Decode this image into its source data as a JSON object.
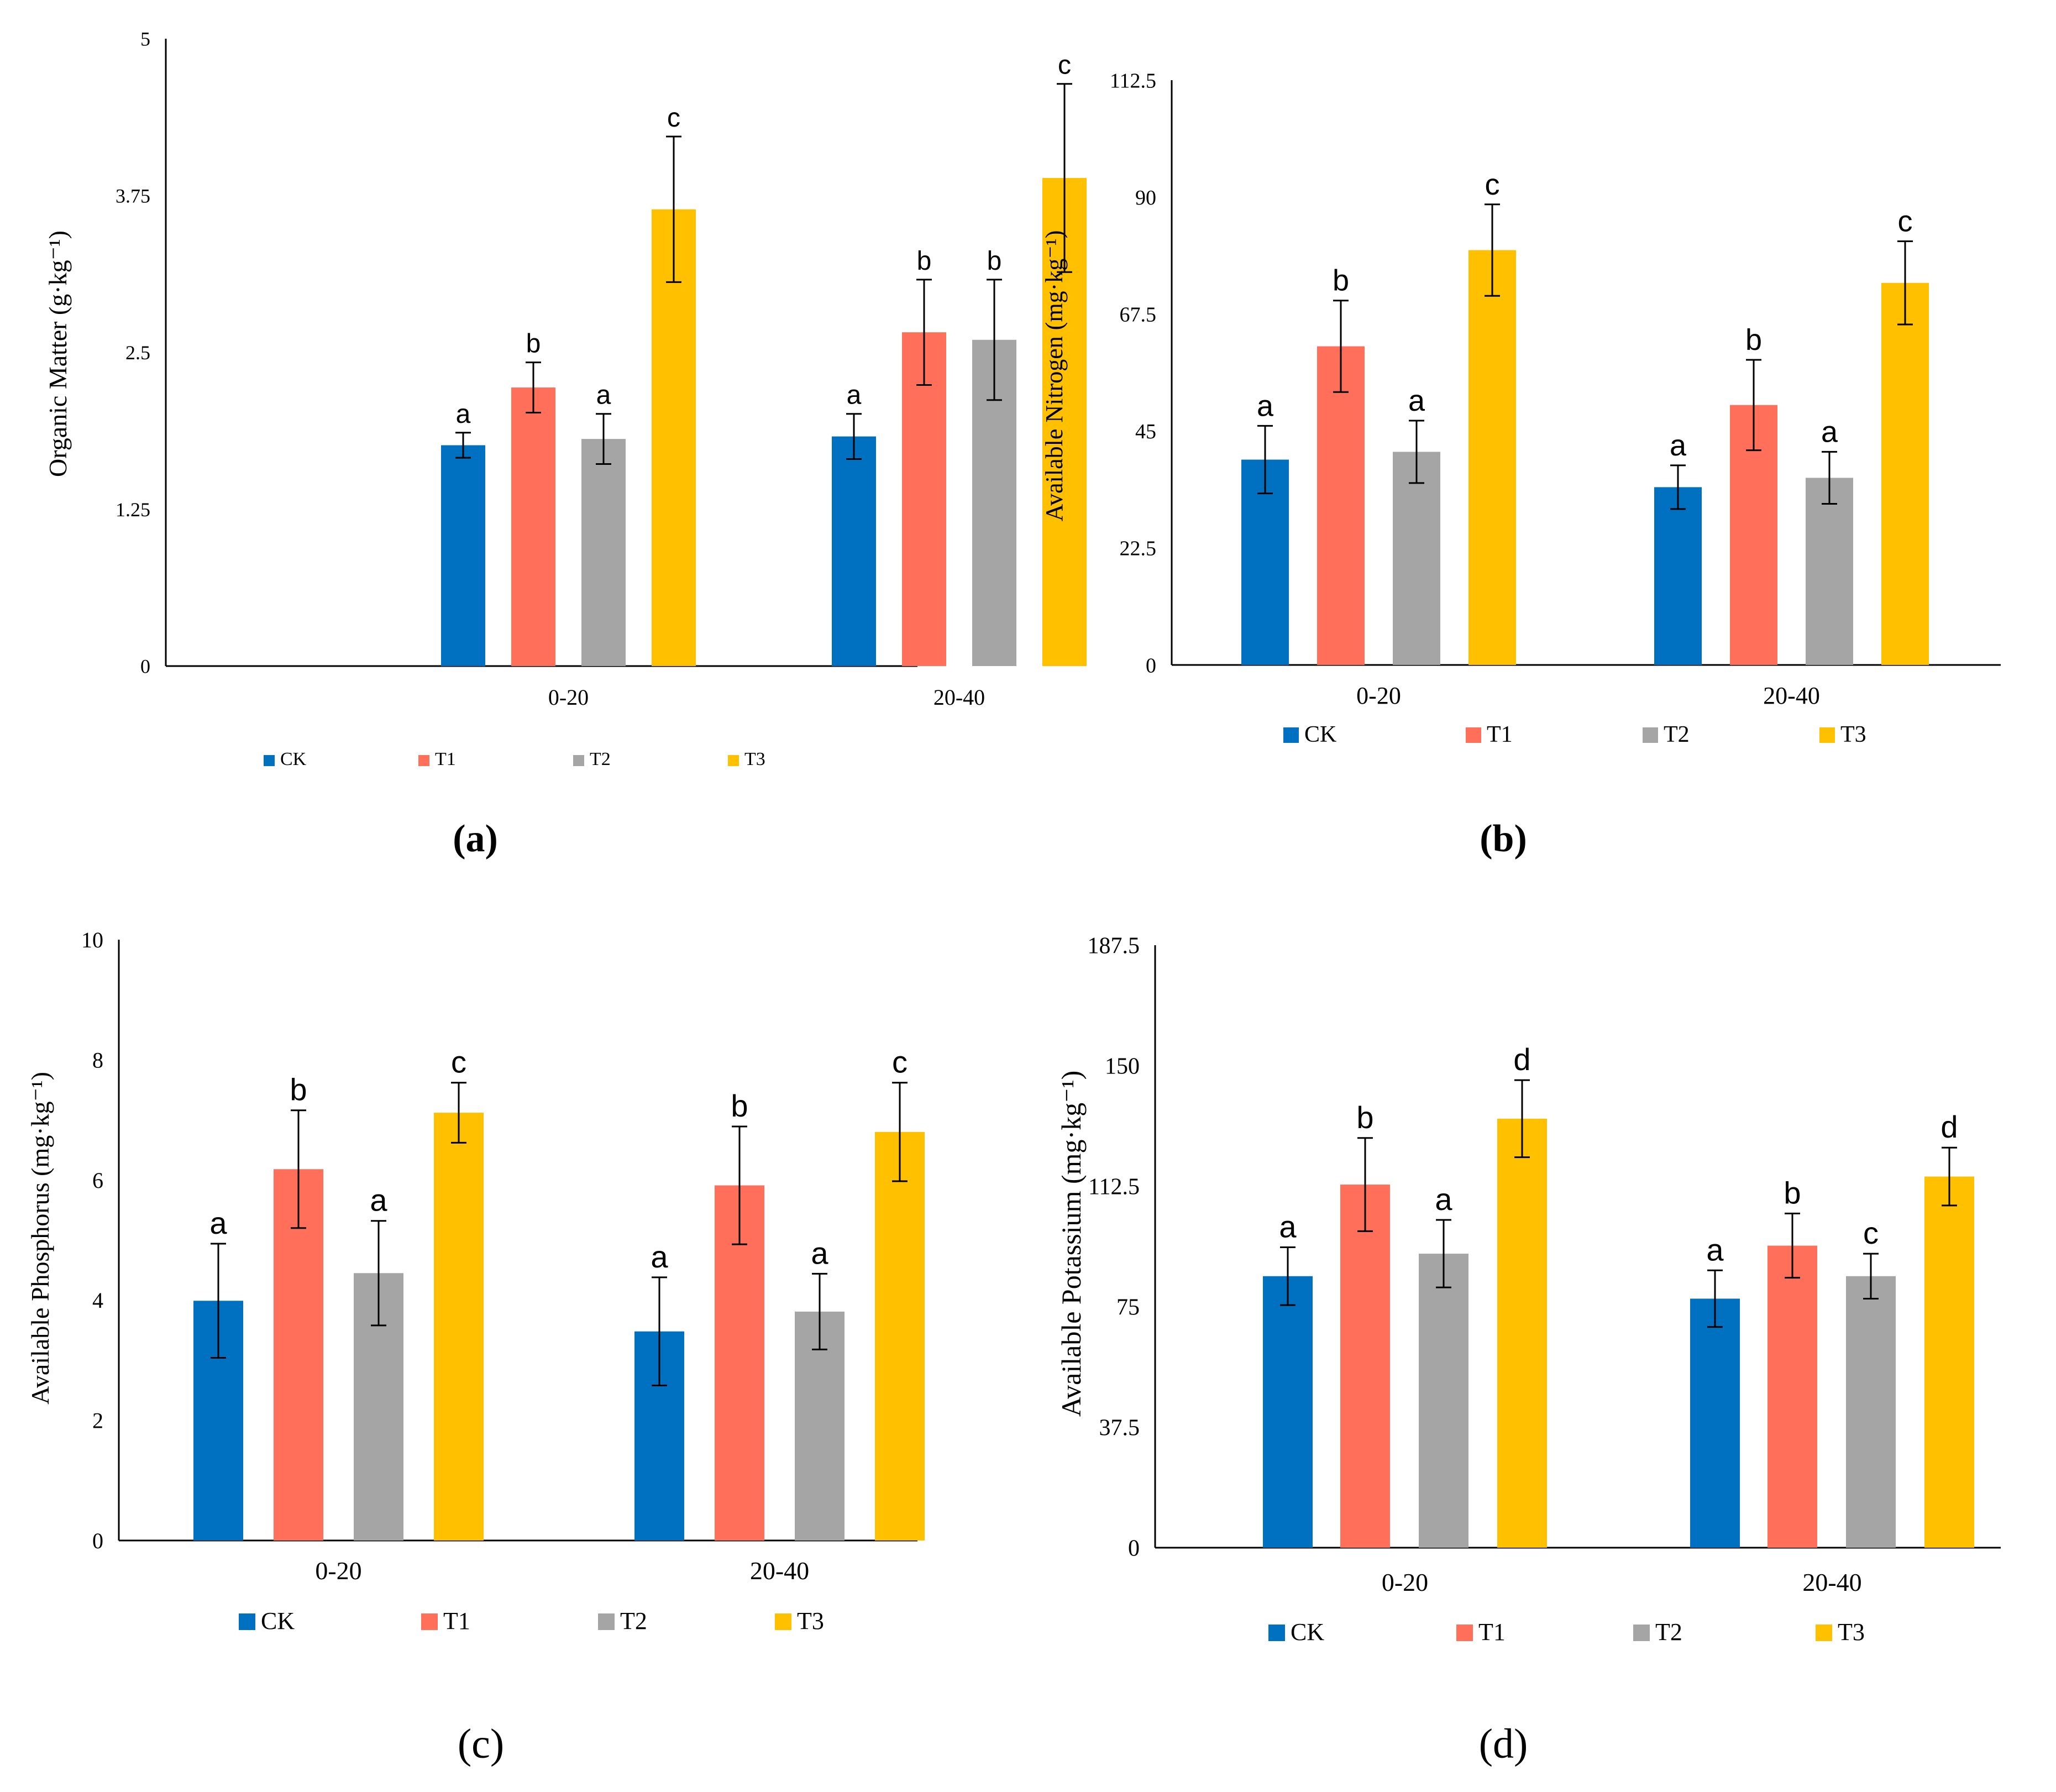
{
  "colors": {
    "CK": "#0070C0",
    "T1": "#FF6F5A",
    "T2": "#A5A5A5",
    "T3": "#FFC000",
    "axis": "#000000",
    "error": "#000000"
  },
  "chart_data": [
    {
      "type": "bar",
      "panel_label": "(a)",
      "ylabel": "Organic Matter (g·kg⁻¹)",
      "ylim": [
        0,
        5
      ],
      "yticks": [
        "0",
        "1.25",
        "2.5",
        "3.75",
        "5"
      ],
      "categories": [
        "0-20",
        "20-40"
      ],
      "series": [
        {
          "name": "CK",
          "values": [
            1.76,
            1.83
          ],
          "errors": [
            0.1,
            0.18
          ],
          "letters": [
            "a",
            "a"
          ]
        },
        {
          "name": "T1",
          "values": [
            2.22,
            2.66
          ],
          "errors": [
            0.2,
            0.42
          ],
          "letters": [
            "b",
            "b"
          ]
        },
        {
          "name": "T2",
          "values": [
            1.81,
            2.6
          ],
          "errors": [
            0.2,
            0.48
          ],
          "letters": [
            "a",
            "b"
          ]
        },
        {
          "name": "T3",
          "values": [
            3.64,
            3.89
          ],
          "errors": [
            0.58,
            0.75
          ],
          "letters": [
            "c",
            "c"
          ]
        }
      ],
      "legend": [
        "CK",
        "T1",
        "T2",
        "T3"
      ]
    },
    {
      "type": "bar",
      "panel_label": "(b)",
      "ylabel": "Available Nitrogen (mg·kg⁻¹)",
      "ylim": [
        0,
        112.5
      ],
      "yticks": [
        "0",
        "22.5",
        "45",
        "67.5",
        "90",
        "112.5"
      ],
      "categories": [
        "0-20",
        "20-40"
      ],
      "series": [
        {
          "name": "CK",
          "values": [
            39.5,
            34.2
          ],
          "errors": [
            6.5,
            4.2
          ],
          "letters": [
            "a",
            "a"
          ]
        },
        {
          "name": "T1",
          "values": [
            61.3,
            50.0
          ],
          "errors": [
            8.8,
            8.7
          ],
          "letters": [
            "b",
            "b"
          ]
        },
        {
          "name": "T2",
          "values": [
            41.0,
            36.0
          ],
          "errors": [
            6.0,
            5.0
          ],
          "letters": [
            "a",
            "a"
          ]
        },
        {
          "name": "T3",
          "values": [
            79.8,
            73.5
          ],
          "errors": [
            8.8,
            8.0
          ],
          "letters": [
            "c",
            "c"
          ]
        }
      ],
      "legend": [
        "CK",
        "T1",
        "T2",
        "T3"
      ]
    },
    {
      "type": "bar",
      "panel_label": "(c)",
      "ylabel": "Available Phosphorus (mg·kg⁻¹)",
      "ylim": [
        0,
        10
      ],
      "yticks": [
        "0",
        "2",
        "4",
        "6",
        "8",
        "10"
      ],
      "categories": [
        "0-20",
        "20-40"
      ],
      "series": [
        {
          "name": "CK",
          "values": [
            3.99,
            3.48
          ],
          "errors": [
            0.95,
            0.9
          ],
          "letters": [
            "a",
            "a"
          ]
        },
        {
          "name": "T1",
          "values": [
            6.18,
            5.91
          ],
          "errors": [
            0.98,
            0.98
          ],
          "letters": [
            "b",
            "b"
          ]
        },
        {
          "name": "T2",
          "values": [
            4.45,
            3.81
          ],
          "errors": [
            0.87,
            0.63
          ],
          "letters": [
            "a",
            "a"
          ]
        },
        {
          "name": "T3",
          "values": [
            7.12,
            6.8
          ],
          "errors": [
            0.5,
            0.82
          ],
          "letters": [
            "c",
            "c"
          ]
        }
      ],
      "legend": [
        "CK",
        "T1",
        "T2",
        "T3"
      ]
    },
    {
      "type": "bar",
      "panel_label": "(d)",
      "ylabel": "Available Potassium (mg·kg⁻¹)",
      "ylim": [
        0,
        187.5
      ],
      "yticks": [
        "0",
        "37.5",
        "75",
        "112.5",
        "150",
        "187.5"
      ],
      "categories": [
        "0-20",
        "20-40"
      ],
      "series": [
        {
          "name": "CK",
          "values": [
            84.5,
            77.5
          ],
          "errors": [
            9.0,
            8.8
          ],
          "letters": [
            "a",
            "a"
          ]
        },
        {
          "name": "T1",
          "values": [
            113.0,
            94.0
          ],
          "errors": [
            14.5,
            10.0
          ],
          "letters": [
            "b",
            "b"
          ]
        },
        {
          "name": "T2",
          "values": [
            91.5,
            84.5
          ],
          "errors": [
            10.5,
            7.0
          ],
          "letters": [
            "a",
            "c"
          ]
        },
        {
          "name": "T3",
          "values": [
            133.5,
            115.5
          ],
          "errors": [
            12.0,
            9.0
          ],
          "letters": [
            "d",
            "d"
          ]
        }
      ],
      "legend": [
        "CK",
        "T1",
        "T2",
        "T3"
      ]
    }
  ]
}
